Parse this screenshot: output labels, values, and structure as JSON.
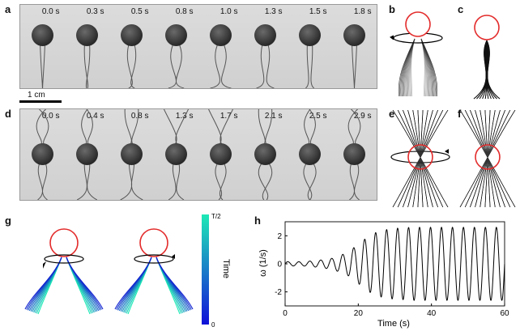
{
  "panels": {
    "a": "a",
    "b": "b",
    "c": "c",
    "d": "d",
    "e": "e",
    "f": "f",
    "g": "g",
    "h": "h"
  },
  "row_a_times": [
    "0.0 s",
    "0.3 s",
    "0.5 s",
    "0.8 s",
    "1.0 s",
    "1.3 s",
    "1.5 s",
    "1.8 s"
  ],
  "row_d_times": [
    "0.0 s",
    "0.4 s",
    "0.8 s",
    "1.3 s",
    "1.7 s",
    "2.1 s",
    "2.5 s",
    "2.9 s"
  ],
  "scale_label": "1 cm",
  "colorbar": {
    "top": "T/2",
    "bottom": "0",
    "label": "Time"
  },
  "colors": {
    "sphere_outline": "#e32b2b",
    "colorbar_top": "#1de9b6",
    "colorbar_bottom": "#1020d0"
  },
  "chart_data": {
    "type": "line",
    "xlabel": "Time (s)",
    "ylabel": "ω (1/s)",
    "xlim": [
      0,
      60
    ],
    "ylim": [
      -3,
      3
    ],
    "xticks": [
      0,
      20,
      40,
      60
    ],
    "yticks": [
      -2,
      0,
      2
    ],
    "series": [
      {
        "x": [
          0,
          1,
          2,
          3,
          4,
          5,
          6,
          7,
          8,
          9,
          10,
          11,
          12,
          13,
          14,
          15,
          16,
          17,
          18,
          19,
          20,
          21,
          22,
          23,
          24,
          25,
          26,
          27,
          28,
          29,
          30,
          31,
          32,
          33,
          34,
          35,
          36,
          37,
          38,
          39,
          40,
          41,
          42,
          43,
          44,
          45,
          46,
          47,
          48,
          49,
          50,
          51,
          52,
          53,
          54,
          55,
          56,
          57,
          58,
          59,
          60
        ],
        "envelope": [
          0.15,
          0.15,
          0.15,
          0.15,
          0.15,
          0.15,
          0.18,
          0.2,
          0.22,
          0.25,
          0.28,
          0.32,
          0.36,
          0.4,
          0.5,
          0.6,
          0.7,
          0.8,
          1.0,
          1.2,
          1.4,
          1.6,
          1.8,
          2.0,
          2.15,
          2.25,
          2.35,
          2.4,
          2.45,
          2.5,
          2.5,
          2.55,
          2.55,
          2.55,
          2.6,
          2.6,
          2.6,
          2.6,
          2.6,
          2.6,
          2.6,
          2.6,
          2.6,
          2.6,
          2.6,
          2.6,
          2.6,
          2.6,
          2.6,
          2.6,
          2.6,
          2.6,
          2.6,
          2.6,
          2.6,
          2.6,
          2.6,
          2.6,
          2.6,
          2.6,
          2.6
        ],
        "period_s": 3.0
      }
    ]
  }
}
